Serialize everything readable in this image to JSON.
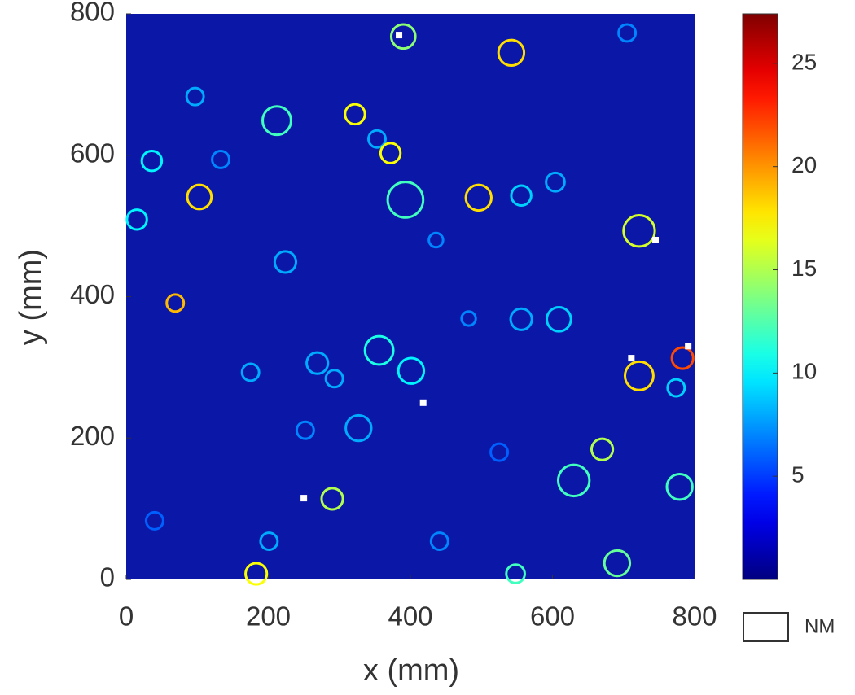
{
  "chart_data": {
    "type": "heatmap",
    "xlabel": "x (mm)",
    "ylabel": "y (mm)",
    "xlim": [
      0,
      800
    ],
    "ylim": [
      0,
      800
    ],
    "xticks": [
      0,
      200,
      400,
      600,
      800
    ],
    "yticks": [
      0,
      200,
      400,
      600,
      800
    ],
    "x": [
      390,
      542,
      212,
      322,
      393,
      496,
      103,
      36,
      15,
      722,
      69,
      356,
      401,
      722,
      783,
      556,
      609,
      290,
      630,
      670,
      691,
      183,
      548,
      779,
      224,
      269,
      327,
      604,
      556,
      353,
      372,
      201,
      436,
      705,
      133,
      97,
      441,
      40,
      175,
      774,
      525,
      482,
      252,
      293
    ],
    "y": [
      768,
      745,
      649,
      658,
      537,
      540,
      541,
      592,
      509,
      493,
      391,
      324,
      295,
      288,
      313,
      368,
      368,
      114,
      140,
      184,
      23,
      8,
      8,
      131,
      449,
      306,
      214,
      562,
      543,
      623,
      603,
      54,
      480,
      773,
      594,
      683,
      54,
      83,
      293,
      271,
      180,
      369,
      211,
      284
    ],
    "sizes": [
      17,
      18,
      20,
      14,
      25,
      18,
      17,
      14,
      14,
      22,
      12,
      20,
      18,
      20,
      15,
      15,
      17,
      15,
      22,
      15,
      18,
      15,
      13,
      18,
      15,
      15,
      18,
      13,
      14,
      12,
      14,
      12,
      10,
      12,
      12,
      12,
      12,
      12,
      12,
      12,
      12,
      10,
      12,
      12
    ],
    "values": [
      14,
      18,
      12,
      17,
      12,
      18,
      18,
      10,
      10,
      16,
      19,
      11,
      10,
      18,
      22,
      8,
      9,
      15,
      12,
      15,
      13,
      17,
      12,
      12,
      8,
      8,
      8,
      8,
      9,
      8,
      17,
      8,
      7,
      7,
      7,
      8,
      7,
      6,
      8,
      9,
      6,
      7,
      7,
      8
    ],
    "nm_x": [
      384,
      250,
      711,
      791,
      745,
      418
    ],
    "nm_y": [
      770,
      115,
      313,
      330,
      480,
      250
    ],
    "clim": [
      0,
      27.4
    ],
    "colorbar_ticks": [
      5,
      10,
      15,
      20,
      25
    ],
    "legend": "NM"
  }
}
